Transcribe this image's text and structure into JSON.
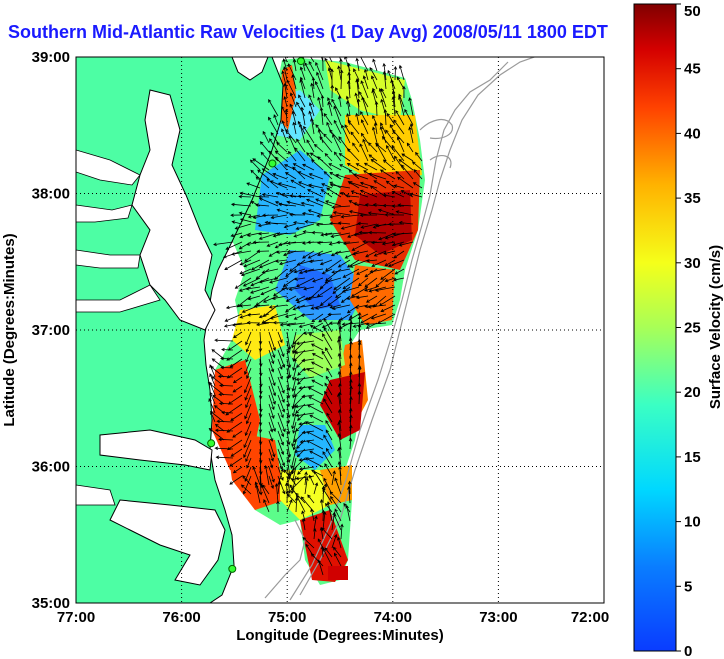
{
  "title": "Southern Mid-Atlantic Raw Velocities (1 Day Avg) 2008/05/11 1800 EDT",
  "map": {
    "xlabel": "Longitude (Degrees:Minutes)",
    "ylabel": "Latitude (Degrees:Minutes)",
    "lon_range": [
      -77,
      -72
    ],
    "lat_range": [
      35,
      39
    ],
    "x_ticks": [
      "77:00",
      "76:00",
      "75:00",
      "74:00",
      "73:00",
      "72:00"
    ],
    "y_ticks": [
      "39:00",
      "38:00",
      "37:00",
      "36:00",
      "35:00"
    ],
    "grid": "dotted",
    "land_color": "#4dfea4",
    "water_color": "#ffffff",
    "contour_color": "#9a9a9a"
  },
  "colorbar": {
    "label": "Surface Velocity (cm/s)",
    "ticks": [
      "0",
      "5",
      "10",
      "15",
      "20",
      "25",
      "30",
      "35",
      "40",
      "45",
      "50"
    ],
    "min": 0,
    "max": 50,
    "colormap": "jet"
  },
  "stations": [
    {
      "lon": -74.87,
      "lat": 38.97
    },
    {
      "lon": -75.14,
      "lat": 38.22
    },
    {
      "lon": -75.72,
      "lat": 36.17
    },
    {
      "lon": -75.52,
      "lat": 35.25
    }
  ]
}
